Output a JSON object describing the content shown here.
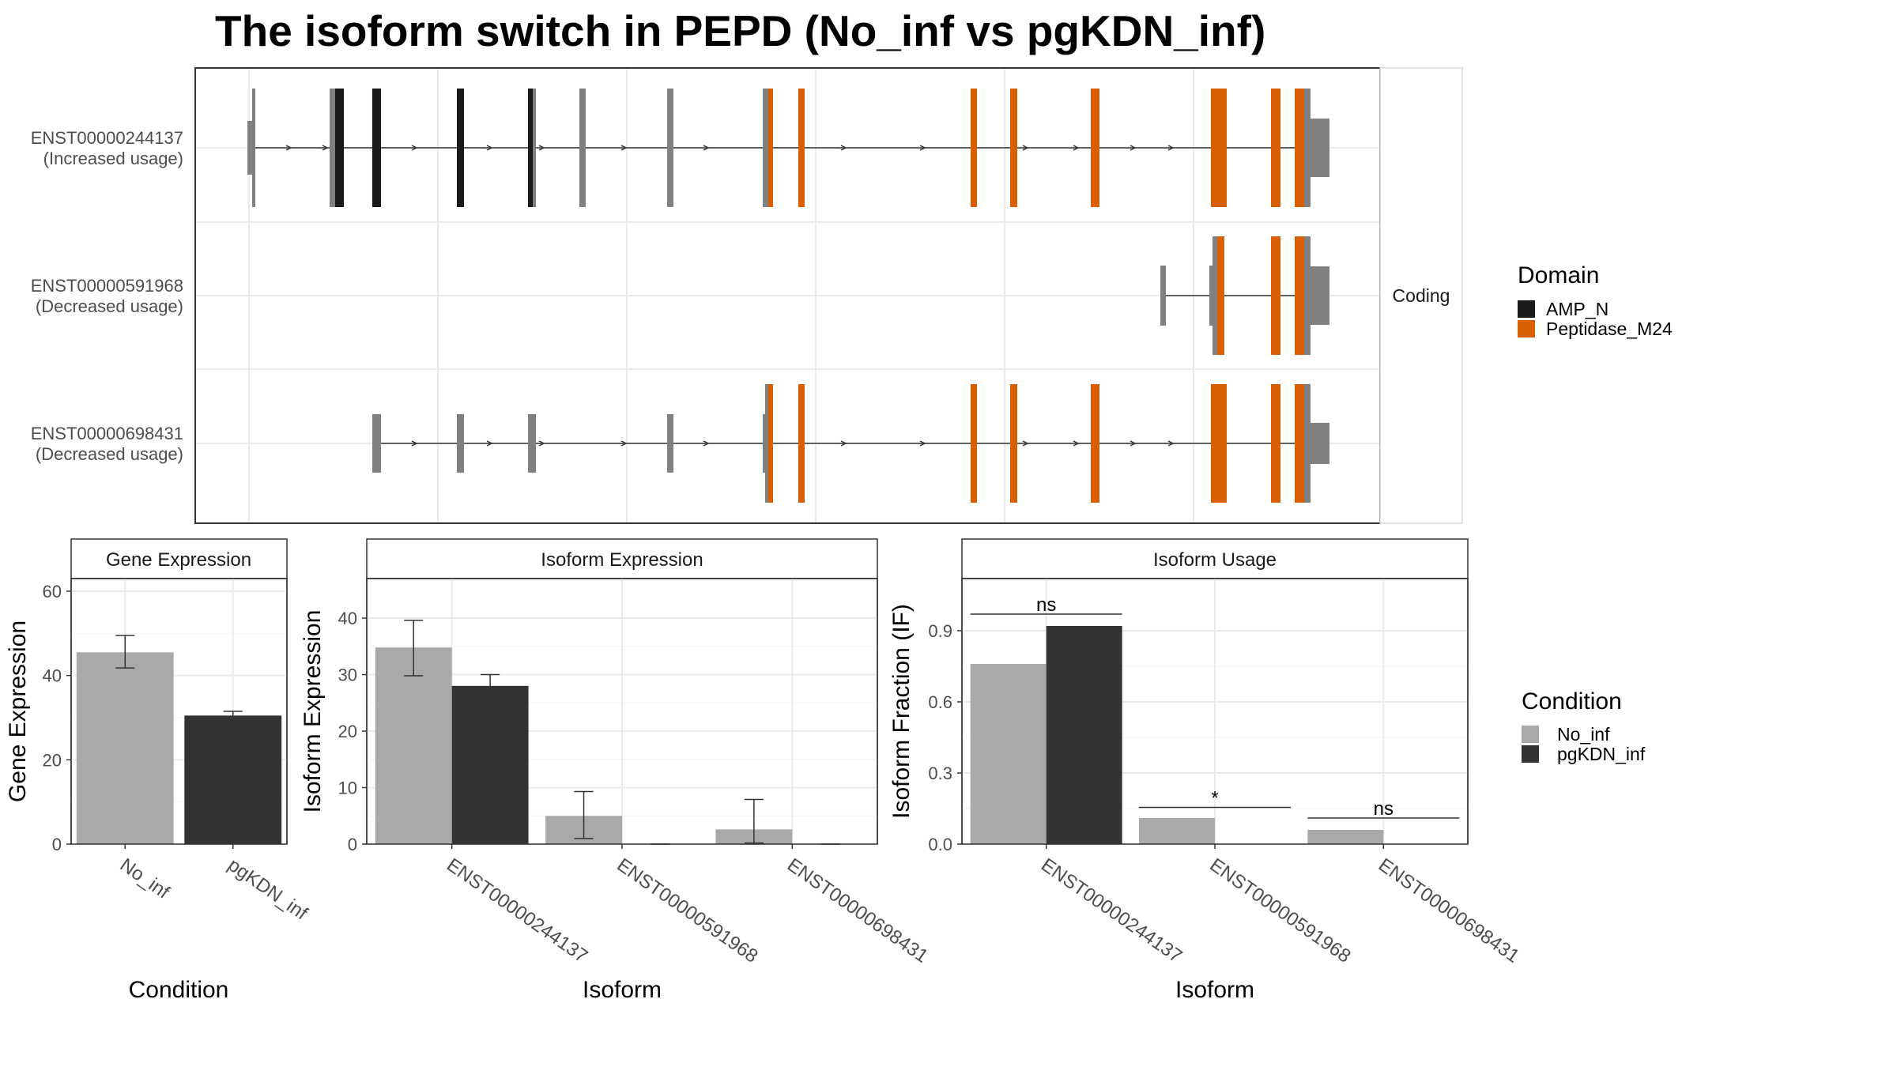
{
  "title": "The isoform switch in PEPD (No_inf vs pgKDN_inf)",
  "colors": {
    "no_inf": "#a9a9a9",
    "pgkdn_inf": "#333333",
    "amp_n": "#1a1a1a",
    "peptidase_m24": "#d95f02",
    "noncoding_exon": "#808080"
  },
  "structure": {
    "facet_label": "Coding",
    "transcripts": [
      {
        "id": "ENST00000244137",
        "usage": "(Increased usage)"
      },
      {
        "id": "ENST00000591968",
        "usage": "(Decreased usage)"
      },
      {
        "id": "ENST00000698431",
        "usage": "(Decreased usage)"
      }
    ]
  },
  "legends": {
    "domain": {
      "title": "Domain",
      "items": [
        "AMP_N",
        "Peptidase_M24"
      ]
    },
    "condition": {
      "title": "Condition",
      "items": [
        "No_inf",
        "pgKDN_inf"
      ]
    }
  },
  "chart_data": [
    {
      "type": "bar",
      "panel": "Gene Expression",
      "categories": [
        "No_inf",
        "pgKDN_inf"
      ],
      "values": [
        45.5,
        30.5
      ],
      "error_low": [
        41.8,
        29.5
      ],
      "error_high": [
        49.5,
        31.5
      ],
      "xlabel": "Condition",
      "ylabel": "Gene Expression",
      "ylim": [
        0,
        63
      ],
      "yticks": [
        0,
        20,
        40,
        60
      ]
    },
    {
      "type": "bar",
      "panel": "Isoform Expression",
      "categories": [
        "ENST00000244137",
        "ENST00000591968",
        "ENST00000698431"
      ],
      "series": [
        {
          "name": "No_inf",
          "values": [
            34.8,
            5.0,
            2.6
          ],
          "error_low": [
            29.8,
            1.0,
            0.2
          ],
          "error_high": [
            39.6,
            9.3,
            7.9
          ]
        },
        {
          "name": "pgKDN_inf",
          "values": [
            28.0,
            0.0,
            0.0
          ],
          "error_low": [
            26.2,
            0.0,
            0.0
          ],
          "error_high": [
            30.0,
            0.0,
            0.0
          ]
        }
      ],
      "xlabel": "Isoform",
      "ylabel": "Isoform Expression",
      "ylim": [
        0,
        47
      ],
      "yticks": [
        0,
        10,
        20,
        30,
        40
      ]
    },
    {
      "type": "bar",
      "panel": "Isoform Usage",
      "categories": [
        "ENST00000244137",
        "ENST00000591968",
        "ENST00000698431"
      ],
      "series": [
        {
          "name": "No_inf",
          "values": [
            0.76,
            0.11,
            0.06
          ]
        },
        {
          "name": "pgKDN_inf",
          "values": [
            0.92,
            0.0,
            0.0
          ]
        }
      ],
      "significance": [
        "ns",
        "*",
        "ns"
      ],
      "significance_y": [
        0.97,
        0.155,
        0.11
      ],
      "xlabel": "Isoform",
      "ylabel": "Isoform Fraction (IF)",
      "ylim": [
        0,
        1.12
      ],
      "yticks": [
        0.0,
        0.3,
        0.6,
        0.9
      ],
      "ytick_labels": [
        "0.0",
        "0.3",
        "0.6",
        "0.9"
      ]
    }
  ]
}
